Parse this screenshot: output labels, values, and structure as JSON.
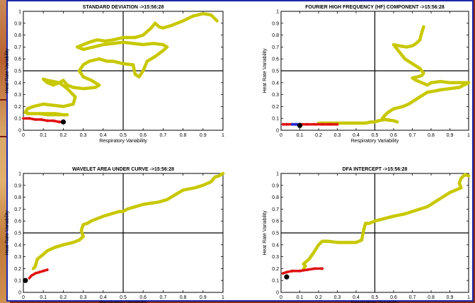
{
  "colors": {
    "trail": "#c8c800",
    "recent": "#e01010",
    "recent_alt": "#1a2ad8",
    "current": "#000000",
    "frame": "#1b27a8"
  },
  "chart_data": [
    {
      "type": "scatter",
      "title": "STANDARD DEVIATION ->15:56:28",
      "xlabel": "Respiratory Variability",
      "ylabel": "Heat Rate Variability",
      "xlim": [
        0,
        1
      ],
      "ylim": [
        0,
        1
      ],
      "xticks": [
        "0",
        "0.1",
        "0.2",
        "0.3",
        "0.4",
        "0.5",
        "0.6",
        "0.7",
        "0.8",
        "0.9",
        "1"
      ],
      "yticks": [
        "0",
        "0.1",
        "0.2",
        "0.3",
        "0.4",
        "0.5",
        "0.6",
        "0.7",
        "0.8",
        "0.9",
        "1"
      ],
      "series": [
        {
          "role": "trail",
          "x": [
            0.97,
            0.94,
            0.9,
            0.85,
            0.8,
            0.74,
            0.7,
            0.68,
            0.66,
            0.64,
            0.62,
            0.6,
            0.56,
            0.5,
            0.45,
            0.41,
            0.37,
            0.33,
            0.3,
            0.27,
            0.3,
            0.35,
            0.4,
            0.45,
            0.5,
            0.55,
            0.6,
            0.65,
            0.7,
            0.72,
            0.7,
            0.66,
            0.62,
            0.6,
            0.58,
            0.56,
            0.55,
            0.5,
            0.45,
            0.42,
            0.38,
            0.33,
            0.3,
            0.28,
            0.3,
            0.34,
            0.38,
            0.36,
            0.3,
            0.25,
            0.22,
            0.2,
            0.18,
            0.15,
            0.12,
            0.1,
            0.12,
            0.18,
            0.22,
            0.26,
            0.25,
            0.2,
            0.15,
            0.1,
            0.05,
            0.02,
            0.01,
            0.03,
            0.06,
            0.1,
            0.16,
            0.2,
            0.22,
            0.18,
            0.12,
            0.08,
            0.04,
            0.02
          ],
          "y": [
            0.92,
            0.97,
            0.98,
            0.96,
            0.92,
            0.88,
            0.86,
            0.87,
            0.9,
            0.86,
            0.83,
            0.8,
            0.78,
            0.78,
            0.76,
            0.75,
            0.76,
            0.74,
            0.72,
            0.7,
            0.68,
            0.7,
            0.72,
            0.73,
            0.74,
            0.73,
            0.72,
            0.73,
            0.72,
            0.7,
            0.67,
            0.62,
            0.58,
            0.5,
            0.45,
            0.47,
            0.55,
            0.56,
            0.58,
            0.58,
            0.6,
            0.58,
            0.55,
            0.5,
            0.45,
            0.42,
            0.38,
            0.36,
            0.35,
            0.36,
            0.38,
            0.42,
            0.4,
            0.38,
            0.4,
            0.43,
            0.42,
            0.4,
            0.35,
            0.28,
            0.22,
            0.2,
            0.21,
            0.22,
            0.2,
            0.18,
            0.15,
            0.14,
            0.14,
            0.14,
            0.14,
            0.13,
            0.13,
            0.13,
            0.13,
            0.14,
            0.14,
            0.14
          ]
        },
        {
          "role": "recent",
          "x": [
            0.0,
            0.03,
            0.06,
            0.09,
            0.12,
            0.15,
            0.18,
            0.2
          ],
          "y": [
            0.1,
            0.1,
            0.09,
            0.09,
            0.08,
            0.08,
            0.07,
            0.07
          ]
        },
        {
          "role": "current",
          "x": [
            0.2
          ],
          "y": [
            0.07
          ]
        }
      ]
    },
    {
      "type": "scatter",
      "title": "FOURIER HIGH FREQUENCY (HF) COMPONENT ->15:56:28",
      "xlabel": "Respiratory Variability",
      "ylabel": "Heat Rate Variability",
      "xlim": [
        0,
        1
      ],
      "ylim": [
        0,
        1
      ],
      "xticks": [
        "0",
        "0.1",
        "0.2",
        "0.3",
        "0.4",
        "0.5",
        "0.6",
        "0.7",
        "0.8",
        "0.9",
        "1"
      ],
      "yticks": [
        "0",
        "0.1",
        "0.2",
        "0.3",
        "0.4",
        "0.5",
        "0.6",
        "0.7",
        "0.8",
        "0.9",
        "1"
      ],
      "series": [
        {
          "role": "trail",
          "x": [
            0.76,
            0.75,
            0.74,
            0.72,
            0.7,
            0.67,
            0.63,
            0.6,
            0.62,
            0.66,
            0.7,
            0.72,
            0.74,
            0.76,
            0.75,
            0.73,
            0.7,
            0.72,
            0.75,
            0.78,
            0.8,
            0.85,
            0.9,
            0.95,
            1.0,
            0.95,
            0.9,
            0.85,
            0.82,
            0.78,
            0.76,
            0.74,
            0.72,
            0.7,
            0.68,
            0.65,
            0.6,
            0.57,
            0.55,
            0.54,
            0.56,
            0.6,
            0.62,
            0.6,
            0.55,
            0.52,
            0.5,
            0.48,
            0.45,
            0.4,
            0.35,
            0.3,
            0.25,
            0.2
          ],
          "y": [
            0.87,
            0.82,
            0.76,
            0.73,
            0.71,
            0.7,
            0.71,
            0.72,
            0.68,
            0.6,
            0.56,
            0.54,
            0.52,
            0.48,
            0.46,
            0.45,
            0.44,
            0.42,
            0.4,
            0.38,
            0.4,
            0.41,
            0.4,
            0.4,
            0.4,
            0.36,
            0.35,
            0.34,
            0.33,
            0.32,
            0.3,
            0.28,
            0.26,
            0.24,
            0.22,
            0.2,
            0.18,
            0.15,
            0.12,
            0.1,
            0.09,
            0.08,
            0.07,
            0.08,
            0.09,
            0.08,
            0.07,
            0.07,
            0.06,
            0.06,
            0.06,
            0.06,
            0.06,
            0.06
          ]
        },
        {
          "role": "recent",
          "x": [
            0.3,
            0.26,
            0.22,
            0.18,
            0.14,
            0.1,
            0.06,
            0.03,
            0.01
          ],
          "y": [
            0.05,
            0.05,
            0.05,
            0.05,
            0.05,
            0.05,
            0.05,
            0.05,
            0.05
          ]
        },
        {
          "role": "recent_alt",
          "x": [
            0.06,
            0.08,
            0.1
          ],
          "y": [
            0.05,
            0.05,
            0.05
          ]
        },
        {
          "role": "current",
          "x": [
            0.1
          ],
          "y": [
            0.04
          ]
        }
      ]
    },
    {
      "type": "scatter",
      "title": "WAVELET AREA UNDER CURVE ->15:56:28",
      "xlabel": "Respiratory Variability",
      "ylabel": "Heat Rate Variability",
      "xlim": [
        0,
        1
      ],
      "ylim": [
        0,
        1
      ],
      "xticks": [
        "0",
        "0.1",
        "0.2",
        "0.3",
        "0.4",
        "0.5",
        "0.6",
        "0.7",
        "0.8",
        "0.9",
        "1"
      ],
      "yticks": [
        "0",
        "0.1",
        "0.2",
        "0.3",
        "0.4",
        "0.5",
        "0.6",
        "0.7",
        "0.8",
        "0.9",
        "1"
      ],
      "series": [
        {
          "role": "trail",
          "x": [
            1.0,
            0.98,
            0.96,
            0.94,
            0.9,
            0.86,
            0.8,
            0.76,
            0.72,
            0.68,
            0.64,
            0.6,
            0.56,
            0.52,
            0.5,
            0.48,
            0.44,
            0.4,
            0.37,
            0.34,
            0.32,
            0.3,
            0.29,
            0.3,
            0.28,
            0.25,
            0.2,
            0.16,
            0.12,
            0.1,
            0.07,
            0.06,
            0.05
          ],
          "y": [
            1.0,
            0.98,
            0.97,
            0.93,
            0.9,
            0.88,
            0.86,
            0.82,
            0.78,
            0.76,
            0.75,
            0.74,
            0.72,
            0.7,
            0.68,
            0.68,
            0.66,
            0.64,
            0.62,
            0.6,
            0.58,
            0.57,
            0.52,
            0.47,
            0.44,
            0.42,
            0.4,
            0.38,
            0.35,
            0.32,
            0.28,
            0.22,
            0.2
          ]
        },
        {
          "role": "recent",
          "x": [
            0.12,
            0.1,
            0.08,
            0.06,
            0.04,
            0.03
          ],
          "y": [
            0.19,
            0.18,
            0.17,
            0.16,
            0.14,
            0.12
          ]
        },
        {
          "role": "current",
          "x": [
            0.01
          ],
          "y": [
            0.1
          ]
        }
      ]
    },
    {
      "type": "scatter",
      "title": "DFA INTERCEPT ->15:56:28",
      "xlabel": "Respiratory Variability",
      "ylabel": "Heat Rate Variability",
      "xlim": [
        0,
        1
      ],
      "ylim": [
        0,
        1
      ],
      "xticks": [
        "0",
        "0.1",
        "0.2",
        "0.3",
        "0.4",
        "0.5",
        "0.6",
        "0.7",
        "0.8",
        "0.9",
        "1"
      ],
      "yticks": [
        "0",
        "0.1",
        "0.2",
        "0.3",
        "0.4",
        "0.5",
        "0.6",
        "0.7",
        "0.8",
        "0.9",
        "1"
      ],
      "series": [
        {
          "role": "trail",
          "x": [
            1.0,
            0.98,
            0.96,
            0.95,
            0.96,
            0.93,
            0.9,
            0.88,
            0.86,
            0.82,
            0.78,
            0.74,
            0.7,
            0.66,
            0.6,
            0.55,
            0.5,
            0.47,
            0.45,
            0.44,
            0.43,
            0.4,
            0.35,
            0.3,
            0.25,
            0.22,
            0.2,
            0.18,
            0.15,
            0.12,
            0.13,
            0.12
          ],
          "y": [
            0.98,
            0.99,
            0.96,
            0.92,
            0.88,
            0.86,
            0.84,
            0.82,
            0.8,
            0.76,
            0.72,
            0.7,
            0.68,
            0.66,
            0.64,
            0.62,
            0.6,
            0.58,
            0.58,
            0.52,
            0.44,
            0.42,
            0.42,
            0.42,
            0.43,
            0.43,
            0.4,
            0.35,
            0.28,
            0.24,
            0.22,
            0.2
          ]
        },
        {
          "role": "recent",
          "x": [
            0.22,
            0.18,
            0.14,
            0.1,
            0.06,
            0.03,
            0.01
          ],
          "y": [
            0.2,
            0.2,
            0.19,
            0.18,
            0.18,
            0.17,
            0.16
          ]
        },
        {
          "role": "current",
          "x": [
            0.03
          ],
          "y": [
            0.13
          ]
        }
      ]
    }
  ]
}
